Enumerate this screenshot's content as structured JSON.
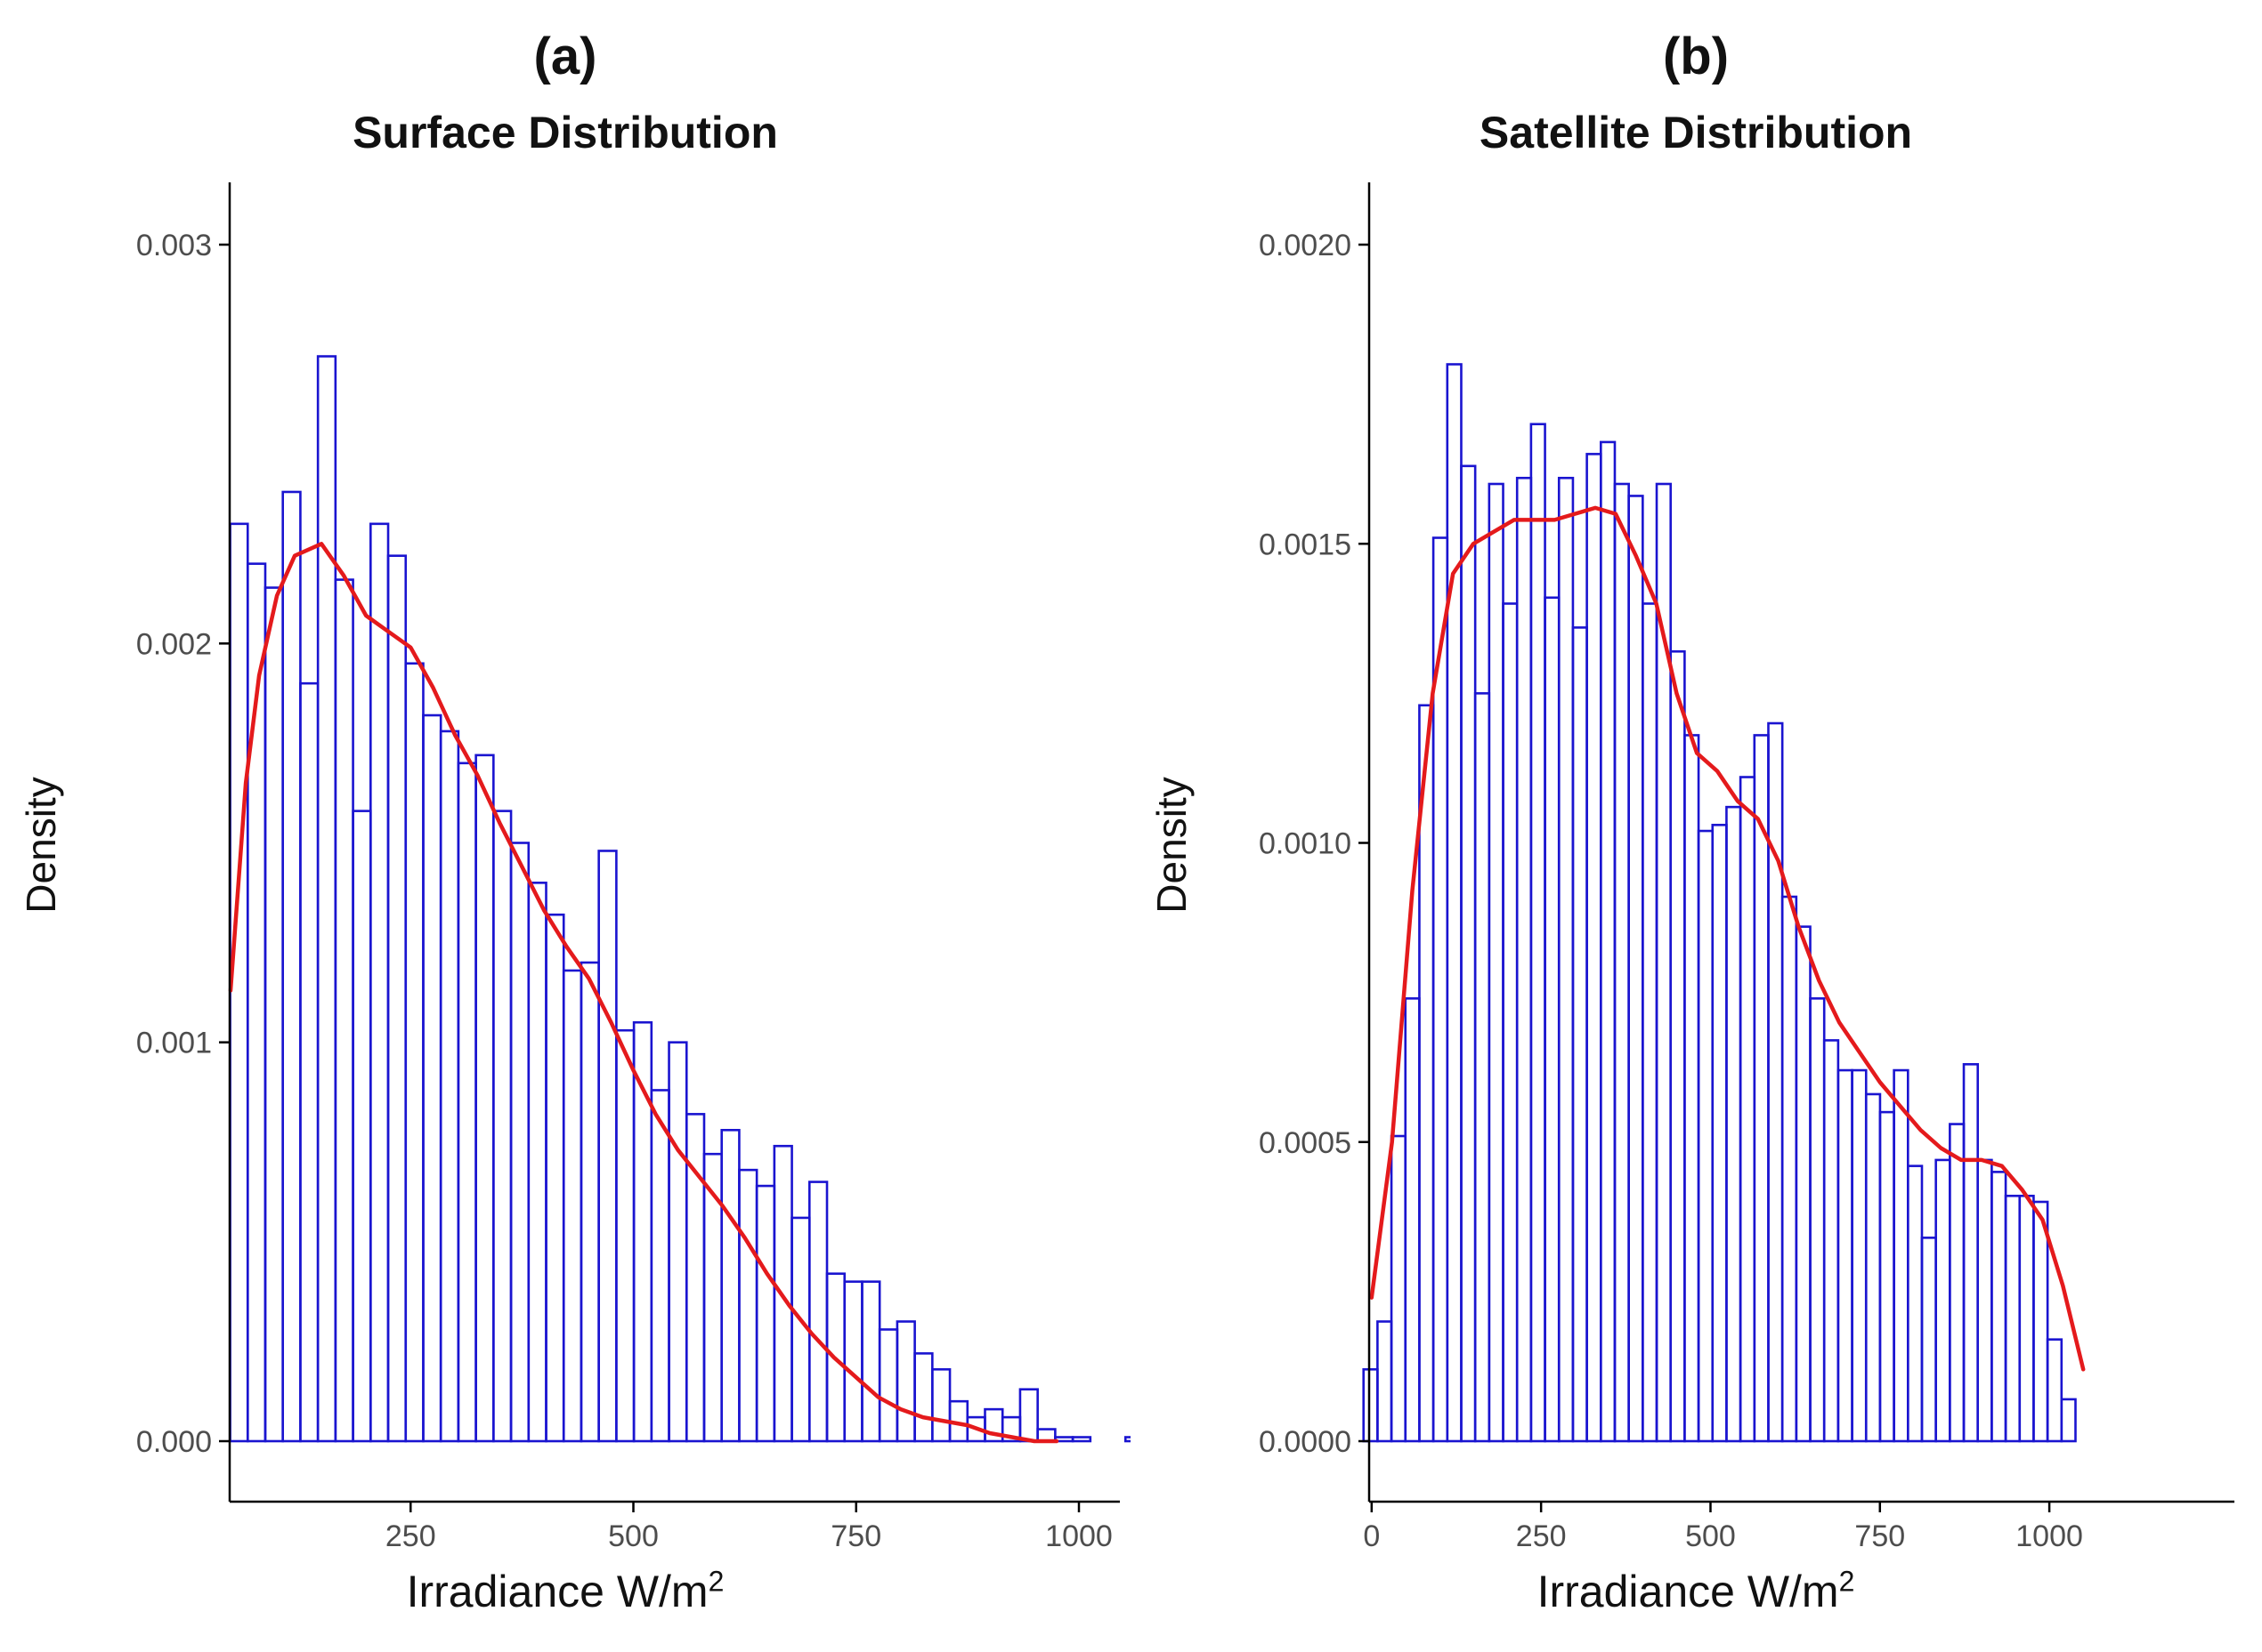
{
  "colors": {
    "bar_stroke": "#1a14d0",
    "density_line": "#e41a1c",
    "axis": "#000000",
    "tick_text": "#4d4d4d"
  },
  "chart_data": [
    {
      "type": "bar",
      "panel_label": "(a)",
      "title": "Surface Distribution",
      "xlabel": "Irradiance W/m",
      "xlabel_sup": "2",
      "ylabel": "Density",
      "xlim": [
        0,
        1000
      ],
      "ylim": [
        0,
        0.003
      ],
      "x_ticks": [
        250,
        500,
        750,
        1000
      ],
      "y_ticks": [
        0,
        0.001,
        0.002,
        0.003
      ],
      "y_tick_labels": [
        "0.000",
        "0.001",
        "0.002",
        "0.003"
      ],
      "bin_width": 19.7,
      "bin_start": 47.5,
      "bar_values": [
        0.0023,
        0.0022,
        0.00214,
        0.00238,
        0.0019,
        0.00272,
        0.00216,
        0.00158,
        0.0023,
        0.00222,
        0.00195,
        0.00182,
        0.00178,
        0.0017,
        0.00172,
        0.00158,
        0.0015,
        0.0014,
        0.00132,
        0.00118,
        0.0012,
        0.00148,
        0.00103,
        0.00105,
        0.00088,
        0.001,
        0.00082,
        0.00072,
        0.00078,
        0.00068,
        0.00064,
        0.00074,
        0.00056,
        0.00065,
        0.00042,
        0.0004,
        0.0004,
        0.00028,
        0.0003,
        0.00022,
        0.00018,
        0.0001,
        6e-05,
        8e-05,
        6e-05,
        0.00013,
        3e-05,
        1e-05,
        1e-05,
        0.0,
        0.0,
        1e-05
      ],
      "density_x": [
        48,
        65,
        80,
        100,
        120,
        150,
        175,
        200,
        225,
        250,
        275,
        300,
        325,
        350,
        375,
        400,
        425,
        450,
        475,
        500,
        525,
        550,
        575,
        600,
        625,
        650,
        675,
        700,
        725,
        750,
        775,
        800,
        825,
        850,
        875,
        900,
        925,
        950,
        975
      ],
      "density_y": [
        0.00113,
        0.00165,
        0.00192,
        0.00212,
        0.00222,
        0.00225,
        0.00217,
        0.00207,
        0.00203,
        0.00199,
        0.00189,
        0.00177,
        0.00167,
        0.00155,
        0.00144,
        0.00133,
        0.00124,
        0.00116,
        0.00105,
        0.00093,
        0.00082,
        0.00073,
        0.00066,
        0.00059,
        0.00051,
        0.00042,
        0.00034,
        0.00027,
        0.00021,
        0.00016,
        0.00011,
        8e-05,
        6e-05,
        5e-05,
        4e-05,
        2e-05,
        1e-05,
        0.0,
        0.0
      ]
    },
    {
      "type": "bar",
      "panel_label": "(b)",
      "title": "Satellite Distribution",
      "xlabel": "Irradiance W/m",
      "xlabel_sup": "2",
      "ylabel": "Density",
      "xlim": [
        -30,
        1080
      ],
      "ylim": [
        0,
        0.002
      ],
      "x_ticks": [
        0,
        250,
        500,
        750,
        1000
      ],
      "y_ticks": [
        0,
        0.0005,
        0.001,
        0.0015,
        0.002
      ],
      "y_tick_labels": [
        "0.0000",
        "0.0005",
        "0.0010",
        "0.0015",
        "0.0020"
      ],
      "bin_width": 20.6,
      "bin_start": -12,
      "bar_values": [
        0.00012,
        0.0002,
        0.00051,
        0.00074,
        0.00123,
        0.00151,
        0.0018,
        0.00163,
        0.00125,
        0.0016,
        0.0014,
        0.00161,
        0.0017,
        0.00141,
        0.00161,
        0.00136,
        0.00165,
        0.00167,
        0.0016,
        0.00158,
        0.0014,
        0.0016,
        0.00132,
        0.00118,
        0.00102,
        0.00103,
        0.00106,
        0.00111,
        0.00118,
        0.0012,
        0.00091,
        0.00086,
        0.00074,
        0.00067,
        0.00062,
        0.00062,
        0.00058,
        0.00055,
        0.00062,
        0.00046,
        0.00034,
        0.00047,
        0.00053,
        0.00063,
        0.00047,
        0.00045,
        0.00041,
        0.00041,
        0.0004,
        0.00017,
        7e-05
      ],
      "density_x": [
        0,
        30,
        60,
        90,
        120,
        150,
        180,
        210,
        240,
        270,
        300,
        330,
        360,
        390,
        420,
        450,
        480,
        510,
        540,
        570,
        600,
        630,
        660,
        690,
        720,
        750,
        780,
        810,
        840,
        870,
        900,
        930,
        960,
        990,
        1020,
        1050
      ],
      "density_y": [
        0.00024,
        0.0005,
        0.00092,
        0.00125,
        0.00145,
        0.0015,
        0.00152,
        0.00154,
        0.00154,
        0.00154,
        0.00155,
        0.00156,
        0.00155,
        0.00148,
        0.0014,
        0.00125,
        0.00115,
        0.00112,
        0.00107,
        0.00104,
        0.00097,
        0.00086,
        0.00077,
        0.0007,
        0.00065,
        0.0006,
        0.00056,
        0.00052,
        0.00049,
        0.00047,
        0.00047,
        0.00046,
        0.00042,
        0.00037,
        0.00026,
        0.00012
      ]
    }
  ]
}
